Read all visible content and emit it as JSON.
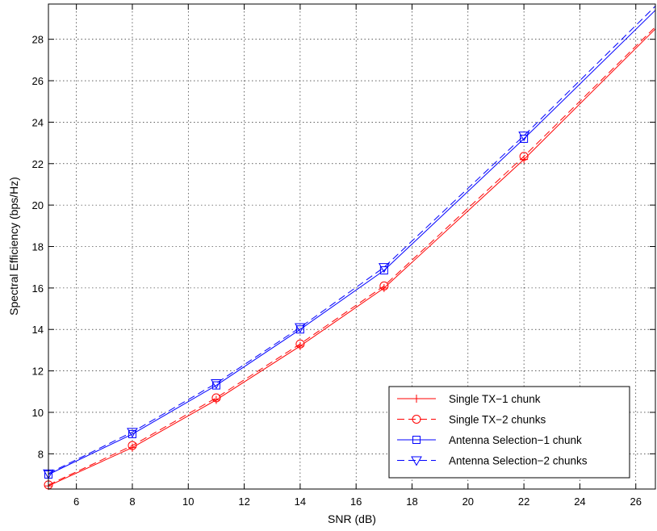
{
  "chart_data": {
    "type": "line",
    "xlabel": "SNR (dB)",
    "ylabel": "Spectral Efficiency (bps/Hz)",
    "xlim": [
      5,
      26.7
    ],
    "ylim": [
      6.3,
      29.7
    ],
    "xticks": [
      6,
      8,
      10,
      12,
      14,
      16,
      18,
      20,
      22,
      24,
      26
    ],
    "yticks": [
      8,
      10,
      12,
      14,
      16,
      18,
      20,
      22,
      24,
      26,
      28
    ],
    "grid": true,
    "legend_position": "bottom-right",
    "series": [
      {
        "name": "Single TX−1 chunk",
        "color": "#ff0000",
        "line_style": "solid",
        "marker": "plus",
        "x": [
          5,
          8,
          11,
          14,
          17,
          22,
          26.7
        ],
        "y": [
          6.45,
          8.3,
          10.6,
          13.2,
          16.0,
          22.2,
          28.5
        ]
      },
      {
        "name": "Single TX−2 chunks",
        "color": "#ff0000",
        "line_style": "dashed",
        "marker": "circle",
        "x": [
          5,
          8,
          11,
          14,
          17,
          22,
          26.7
        ],
        "y": [
          6.5,
          8.4,
          10.7,
          13.3,
          16.1,
          22.35,
          28.6
        ]
      },
      {
        "name": "Antenna Selection−1 chunk",
        "color": "#0000ff",
        "line_style": "solid",
        "marker": "square",
        "x": [
          5,
          8,
          11,
          14,
          17,
          22,
          26.7
        ],
        "y": [
          7.0,
          8.95,
          11.3,
          14.0,
          16.85,
          23.2,
          29.4
        ]
      },
      {
        "name": "Antenna Selection−2 chunks",
        "color": "#0000ff",
        "line_style": "dashed",
        "marker": "triangle-down",
        "x": [
          5,
          8,
          11,
          14,
          17,
          22,
          26.7
        ],
        "y": [
          7.05,
          9.05,
          11.4,
          14.1,
          17.0,
          23.35,
          29.6
        ]
      }
    ]
  }
}
